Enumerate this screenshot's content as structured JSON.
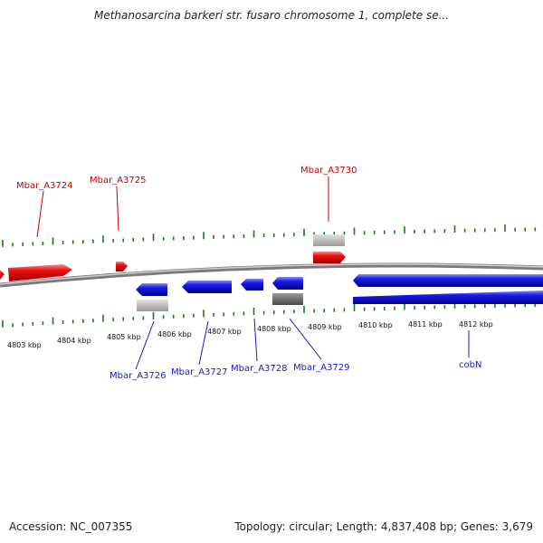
{
  "title": "Methanosarcina barkeri str. fusaro chromosome 1, complete se...",
  "footer": {
    "accession": "Accession: NC_007355",
    "summary": "Topology: circular; Length: 4,837,408 bp; Genes: 3,679"
  },
  "colors": {
    "forward_gene": "#ee0000",
    "reverse_gene": "#1111dd",
    "feature_gray_light": "#b8b8b8",
    "feature_gray_dark": "#6a6a6a",
    "backbone": "#808080",
    "tick": "#1a7a1a",
    "label_red": "#cc0000",
    "label_blue": "#1a1acc"
  },
  "kbp_labels": [
    "4803 kbp",
    "4804 kbp",
    "4805 kbp",
    "4806 kbp",
    "4807 kbp",
    "4808 kbp",
    "4809 kbp",
    "4810 kbp",
    "4811 kbp",
    "4812 kbp"
  ],
  "gene_labels_forward": [
    "Mbar_A3724",
    "Mbar_A3725",
    "Mbar_A3730"
  ],
  "gene_labels_reverse": [
    "Mbar_A3726",
    "Mbar_A3727",
    "Mbar_A3728",
    "Mbar_A3729",
    "cobN"
  ]
}
